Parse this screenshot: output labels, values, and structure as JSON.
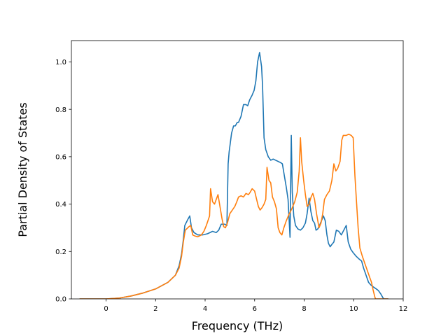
{
  "chart_data": {
    "type": "line",
    "title": "",
    "xlabel": "Frequency (THz)",
    "ylabel": "Partial Density of States",
    "xlim": [
      -1.4,
      12.0
    ],
    "ylim": [
      0.0,
      1.09
    ],
    "xticks": [
      0,
      2,
      4,
      6,
      8,
      10,
      12
    ],
    "yticks": [
      0.0,
      0.2,
      0.4,
      0.6,
      0.8,
      1.0
    ],
    "xtick_labels": [
      "0",
      "2",
      "4",
      "6",
      "8",
      "10",
      "12"
    ],
    "ytick_labels": [
      "0.0",
      "0.2",
      "0.4",
      "0.6",
      "0.8",
      "1.0"
    ],
    "grid": false,
    "legend": "none",
    "series": [
      {
        "color": "#1f77b4",
        "points": [
          [
            -1.07,
            0
          ],
          [
            0,
            0
          ],
          [
            0.5,
            0.003
          ],
          [
            1.0,
            0.012
          ],
          [
            1.5,
            0.025
          ],
          [
            2.0,
            0.042
          ],
          [
            2.5,
            0.07
          ],
          [
            2.8,
            0.1
          ],
          [
            2.95,
            0.14
          ],
          [
            3.05,
            0.19
          ],
          [
            3.12,
            0.25
          ],
          [
            3.18,
            0.31
          ],
          [
            3.3,
            0.335
          ],
          [
            3.38,
            0.35
          ],
          [
            3.45,
            0.3
          ],
          [
            3.55,
            0.28
          ],
          [
            3.7,
            0.27
          ],
          [
            3.9,
            0.27
          ],
          [
            4.1,
            0.275
          ],
          [
            4.3,
            0.285
          ],
          [
            4.45,
            0.28
          ],
          [
            4.55,
            0.29
          ],
          [
            4.65,
            0.315
          ],
          [
            4.8,
            0.315
          ],
          [
            4.88,
            0.31
          ],
          [
            4.93,
            0.57
          ],
          [
            4.97,
            0.62
          ],
          [
            5.02,
            0.66
          ],
          [
            5.07,
            0.7
          ],
          [
            5.15,
            0.73
          ],
          [
            5.22,
            0.73
          ],
          [
            5.3,
            0.745
          ],
          [
            5.35,
            0.745
          ],
          [
            5.45,
            0.77
          ],
          [
            5.55,
            0.82
          ],
          [
            5.65,
            0.82
          ],
          [
            5.72,
            0.815
          ],
          [
            5.8,
            0.84
          ],
          [
            5.9,
            0.86
          ],
          [
            5.98,
            0.88
          ],
          [
            6.05,
            0.92
          ],
          [
            6.12,
            1.0
          ],
          [
            6.2,
            1.04
          ],
          [
            6.28,
            0.98
          ],
          [
            6.32,
            0.9
          ],
          [
            6.38,
            0.68
          ],
          [
            6.45,
            0.63
          ],
          [
            6.55,
            0.6
          ],
          [
            6.65,
            0.585
          ],
          [
            6.75,
            0.59
          ],
          [
            6.85,
            0.585
          ],
          [
            6.95,
            0.58
          ],
          [
            7.05,
            0.575
          ],
          [
            7.12,
            0.57
          ],
          [
            7.2,
            0.52
          ],
          [
            7.28,
            0.47
          ],
          [
            7.35,
            0.42
          ],
          [
            7.43,
            0.26
          ],
          [
            7.48,
            0.69
          ],
          [
            7.52,
            0.45
          ],
          [
            7.58,
            0.35
          ],
          [
            7.65,
            0.31
          ],
          [
            7.75,
            0.295
          ],
          [
            7.85,
            0.29
          ],
          [
            7.95,
            0.3
          ],
          [
            8.05,
            0.32
          ],
          [
            8.12,
            0.36
          ],
          [
            8.2,
            0.425
          ],
          [
            8.27,
            0.37
          ],
          [
            8.35,
            0.33
          ],
          [
            8.42,
            0.32
          ],
          [
            8.48,
            0.29
          ],
          [
            8.55,
            0.295
          ],
          [
            8.62,
            0.31
          ],
          [
            8.7,
            0.33
          ],
          [
            8.78,
            0.35
          ],
          [
            8.85,
            0.33
          ],
          [
            8.92,
            0.27
          ],
          [
            8.98,
            0.235
          ],
          [
            9.05,
            0.22
          ],
          [
            9.12,
            0.23
          ],
          [
            9.2,
            0.24
          ],
          [
            9.3,
            0.29
          ],
          [
            9.4,
            0.285
          ],
          [
            9.5,
            0.27
          ],
          [
            9.6,
            0.29
          ],
          [
            9.7,
            0.31
          ],
          [
            9.78,
            0.24
          ],
          [
            9.88,
            0.21
          ],
          [
            9.98,
            0.195
          ],
          [
            10.1,
            0.18
          ],
          [
            10.2,
            0.17
          ],
          [
            10.32,
            0.16
          ],
          [
            10.4,
            0.13
          ],
          [
            10.5,
            0.1
          ],
          [
            10.6,
            0.07
          ],
          [
            10.7,
            0.058
          ],
          [
            10.8,
            0.05
          ],
          [
            10.9,
            0.043
          ],
          [
            11.0,
            0.035
          ],
          [
            11.1,
            0.02
          ],
          [
            11.18,
            0.005
          ],
          [
            11.22,
            0
          ],
          [
            11.4,
            0
          ]
        ]
      },
      {
        "color": "#ff7f0e",
        "points": [
          [
            -1.07,
            0
          ],
          [
            0,
            0
          ],
          [
            0.5,
            0.003
          ],
          [
            1.0,
            0.012
          ],
          [
            1.5,
            0.025
          ],
          [
            2.0,
            0.042
          ],
          [
            2.5,
            0.07
          ],
          [
            2.8,
            0.1
          ],
          [
            2.95,
            0.13
          ],
          [
            3.05,
            0.18
          ],
          [
            3.12,
            0.24
          ],
          [
            3.2,
            0.29
          ],
          [
            3.35,
            0.305
          ],
          [
            3.42,
            0.31
          ],
          [
            3.5,
            0.27
          ],
          [
            3.6,
            0.265
          ],
          [
            3.7,
            0.262
          ],
          [
            3.85,
            0.27
          ],
          [
            3.95,
            0.285
          ],
          [
            4.05,
            0.31
          ],
          [
            4.18,
            0.35
          ],
          [
            4.22,
            0.465
          ],
          [
            4.3,
            0.41
          ],
          [
            4.38,
            0.4
          ],
          [
            4.45,
            0.42
          ],
          [
            4.52,
            0.44
          ],
          [
            4.6,
            0.39
          ],
          [
            4.68,
            0.34
          ],
          [
            4.75,
            0.305
          ],
          [
            4.82,
            0.3
          ],
          [
            4.9,
            0.32
          ],
          [
            5.0,
            0.36
          ],
          [
            5.1,
            0.375
          ],
          [
            5.2,
            0.39
          ],
          [
            5.28,
            0.41
          ],
          [
            5.35,
            0.43
          ],
          [
            5.45,
            0.435
          ],
          [
            5.55,
            0.43
          ],
          [
            5.65,
            0.445
          ],
          [
            5.75,
            0.44
          ],
          [
            5.82,
            0.45
          ],
          [
            5.9,
            0.465
          ],
          [
            6.0,
            0.455
          ],
          [
            6.08,
            0.42
          ],
          [
            6.15,
            0.39
          ],
          [
            6.22,
            0.375
          ],
          [
            6.3,
            0.385
          ],
          [
            6.38,
            0.4
          ],
          [
            6.45,
            0.42
          ],
          [
            6.5,
            0.555
          ],
          [
            6.58,
            0.5
          ],
          [
            6.65,
            0.49
          ],
          [
            6.72,
            0.43
          ],
          [
            6.8,
            0.41
          ],
          [
            6.88,
            0.38
          ],
          [
            6.95,
            0.3
          ],
          [
            7.02,
            0.28
          ],
          [
            7.1,
            0.27
          ],
          [
            7.18,
            0.3
          ],
          [
            7.28,
            0.33
          ],
          [
            7.38,
            0.355
          ],
          [
            7.5,
            0.38
          ],
          [
            7.62,
            0.41
          ],
          [
            7.72,
            0.45
          ],
          [
            7.8,
            0.54
          ],
          [
            7.85,
            0.68
          ],
          [
            7.9,
            0.58
          ],
          [
            7.98,
            0.5
          ],
          [
            8.05,
            0.44
          ],
          [
            8.12,
            0.39
          ],
          [
            8.2,
            0.4
          ],
          [
            8.28,
            0.43
          ],
          [
            8.35,
            0.445
          ],
          [
            8.42,
            0.42
          ],
          [
            8.5,
            0.36
          ],
          [
            8.55,
            0.33
          ],
          [
            8.6,
            0.3
          ],
          [
            8.68,
            0.32
          ],
          [
            8.75,
            0.36
          ],
          [
            8.82,
            0.42
          ],
          [
            8.92,
            0.44
          ],
          [
            9.02,
            0.455
          ],
          [
            9.12,
            0.5
          ],
          [
            9.2,
            0.57
          ],
          [
            9.28,
            0.54
          ],
          [
            9.35,
            0.55
          ],
          [
            9.45,
            0.58
          ],
          [
            9.52,
            0.67
          ],
          [
            9.58,
            0.69
          ],
          [
            9.7,
            0.69
          ],
          [
            9.8,
            0.695
          ],
          [
            9.9,
            0.69
          ],
          [
            9.98,
            0.68
          ],
          [
            10.05,
            0.52
          ],
          [
            10.12,
            0.4
          ],
          [
            10.18,
            0.3
          ],
          [
            10.25,
            0.215
          ],
          [
            10.35,
            0.18
          ],
          [
            10.45,
            0.15
          ],
          [
            10.55,
            0.12
          ],
          [
            10.65,
            0.09
          ],
          [
            10.72,
            0.07
          ],
          [
            10.78,
            0.04
          ],
          [
            10.85,
            0.01
          ],
          [
            10.88,
            0
          ],
          [
            11.4,
            0
          ]
        ]
      }
    ]
  }
}
